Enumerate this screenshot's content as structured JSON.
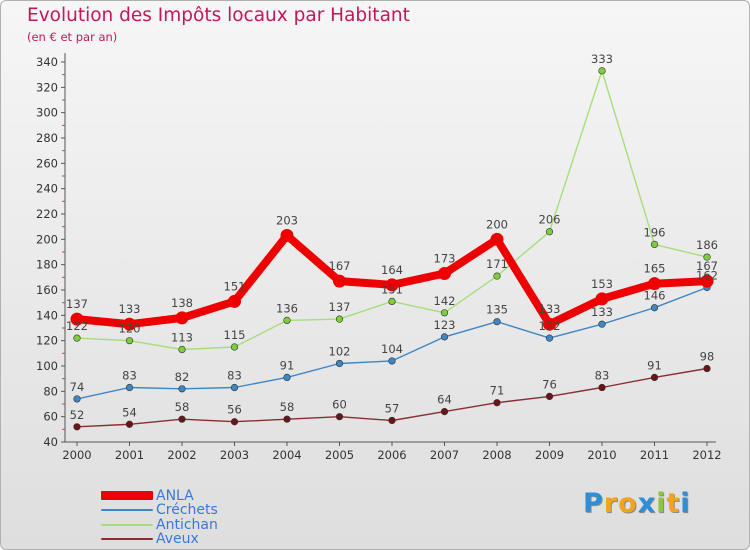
{
  "header": {
    "title": "Evolution des Impôts locaux par Habitant",
    "subtitle": "(en € et par an)"
  },
  "brand": {
    "letters": [
      "P",
      "r",
      "o",
      "x",
      "i",
      "t",
      "i"
    ],
    "colors": [
      "#2e8fd6",
      "#f2a41c",
      "#f2a41c",
      "#2e8fd6",
      "#8cc63f",
      "#f2a41c",
      "#2e8fd6"
    ]
  },
  "chart_data": {
    "type": "line",
    "title": "Evolution des Impôts locaux par Habitant",
    "subtitle": "(en € et par an)",
    "xlabel": "",
    "ylabel": "",
    "ylim": [
      40,
      340
    ],
    "ytick_step": 20,
    "grid": false,
    "legend_position": "bottom-left",
    "x": [
      "2000",
      "2001",
      "2002",
      "2003",
      "2004",
      "2005",
      "2006",
      "2007",
      "2008",
      "2009",
      "2010",
      "2011",
      "2012"
    ],
    "series": [
      {
        "name": "ANLA",
        "color": "#ee0000",
        "emphasis": true,
        "values": [
          137,
          133,
          138,
          151,
          203,
          167,
          164,
          173,
          200,
          133,
          153,
          165,
          167
        ]
      },
      {
        "name": "Créchets",
        "color": "#3f86c6",
        "marker": "#3f86c6",
        "values": [
          74,
          83,
          82,
          83,
          91,
          102,
          104,
          123,
          135,
          122,
          133,
          146,
          162
        ]
      },
      {
        "name": "Antichan",
        "color": "#a5df7a",
        "marker": "#7dcf3a",
        "values": [
          122,
          120,
          113,
          115,
          136,
          137,
          151,
          142,
          171,
          206,
          333,
          196,
          186
        ]
      },
      {
        "name": "Aveux",
        "color": "#8b2e33",
        "marker": "#6a1418",
        "values": [
          52,
          54,
          58,
          56,
          58,
          60,
          57,
          64,
          71,
          76,
          83,
          91,
          98
        ]
      }
    ]
  }
}
